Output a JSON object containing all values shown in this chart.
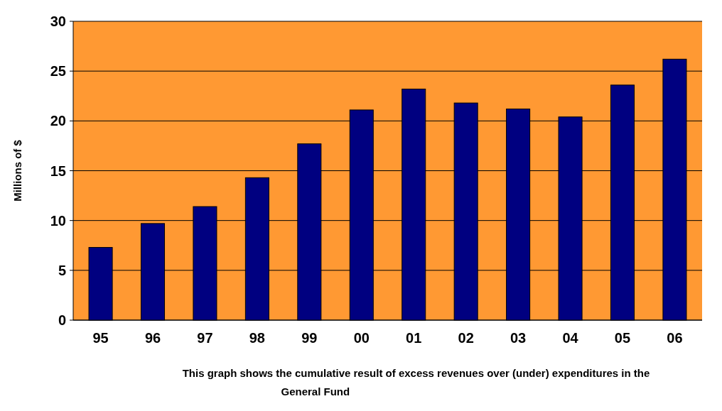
{
  "chart_data": {
    "type": "bar",
    "ylabel": "Millions of $",
    "xlabel": "This graph shows the cumulative result of excess revenues over (under) expenditures in the General Fund",
    "categories": [
      "95",
      "96",
      "97",
      "98",
      "99",
      "00",
      "01",
      "02",
      "03",
      "04",
      "05",
      "06"
    ],
    "series": [
      {
        "color": "#000080",
        "values": [
          7.3,
          9.7,
          11.4,
          14.3,
          17.7,
          21.1,
          23.2,
          21.8,
          21.2,
          20.4,
          23.6,
          26.2
        ]
      }
    ],
    "ylim": [
      0,
      30
    ],
    "yticks": [
      0,
      5,
      10,
      15,
      20,
      25,
      30
    ],
    "grid": "y"
  }
}
